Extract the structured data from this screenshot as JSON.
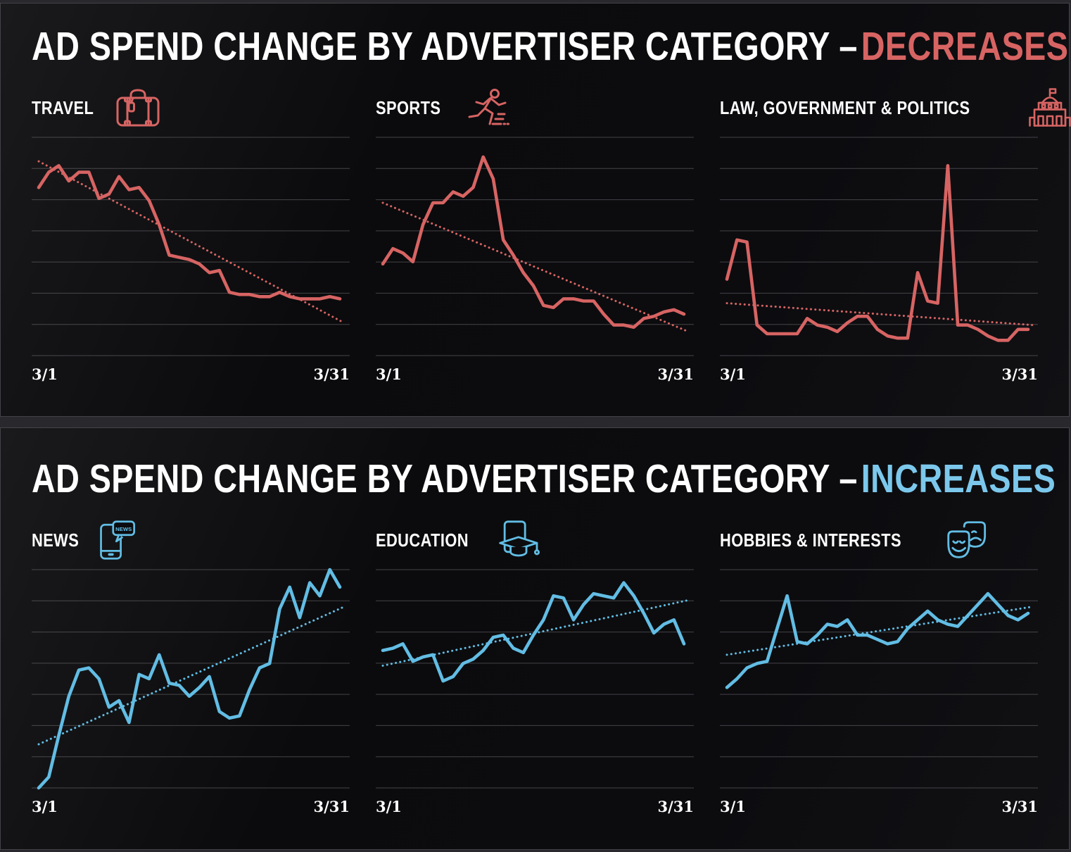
{
  "panels": [
    {
      "title": "AD SPEND CHANGE BY ADVERTISER CATEGORY –",
      "accent": "DECREASES",
      "accent_color": "#d76463"
    },
    {
      "title": "AD SPEND CHANGE BY ADVERTISER CATEGORY –",
      "accent": "INCREASES",
      "accent_color": "#7cc8ec"
    }
  ],
  "chart_data": [
    {
      "type": "line",
      "panel": 0,
      "label": "TRAVEL",
      "icon": "suitcase-icon",
      "color": "#d76463",
      "trend_style": "dotted",
      "x_start": "3/1",
      "x_end": "3/31",
      "x_range_days": 31,
      "ylim": [
        0,
        100
      ],
      "gridlines": 8,
      "legend": "none",
      "values": [
        77,
        84,
        87,
        80,
        84,
        84,
        72,
        74,
        82,
        76,
        77,
        71,
        60,
        46,
        45,
        44,
        42,
        38,
        39,
        29,
        28,
        28,
        27,
        27,
        29,
        27,
        26,
        26,
        26,
        27,
        26
      ],
      "trend": {
        "start": 89,
        "end": 15
      }
    },
    {
      "type": "line",
      "panel": 0,
      "label": "SPORTS",
      "icon": "runner-icon",
      "color": "#d76463",
      "trend_style": "dotted",
      "x_start": "3/1",
      "x_end": "3/31",
      "x_range_days": 31,
      "ylim": [
        0,
        100
      ],
      "gridlines": 8,
      "legend": "none",
      "values": [
        42,
        49,
        47,
        43,
        60,
        70,
        70,
        75,
        73,
        77,
        91,
        81,
        53,
        46,
        38,
        32,
        23,
        22,
        26,
        26,
        25,
        25,
        19,
        14,
        14,
        13,
        17,
        18,
        20,
        21,
        19
      ],
      "trend": {
        "start": 70,
        "end": 11
      }
    },
    {
      "type": "line",
      "panel": 0,
      "label": "LAW, GOVERNMENT & POLITICS",
      "icon": "capitol-icon",
      "color": "#d76463",
      "trend_style": "dotted",
      "x_start": "3/1",
      "x_end": "3/31",
      "x_range_days": 31,
      "ylim": [
        0,
        100
      ],
      "gridlines": 8,
      "legend": "none",
      "values": [
        35,
        53,
        52,
        14,
        10,
        10,
        10,
        10,
        17,
        14,
        13,
        11,
        15,
        18,
        18,
        12,
        9,
        8,
        8,
        38,
        25,
        24,
        87,
        14,
        14,
        12,
        9,
        7,
        7,
        12,
        12
      ],
      "trend": {
        "start": 24,
        "end": 14
      }
    },
    {
      "type": "line",
      "panel": 1,
      "label": "NEWS",
      "icon": "news-phone-icon",
      "color": "#62bde4",
      "trend_style": "dotted",
      "x_start": "3/1",
      "x_end": "3/31",
      "x_range_days": 31,
      "ylim": [
        0,
        100
      ],
      "gridlines": 8,
      "legend": "none",
      "values": [
        0,
        5,
        24,
        42,
        54,
        55,
        50,
        37,
        40,
        30,
        52,
        50,
        61,
        48,
        47,
        42,
        46,
        51,
        35,
        32,
        33,
        45,
        55,
        57,
        82,
        92,
        78,
        94,
        88,
        100,
        92
      ],
      "trend": {
        "start": 20,
        "end": 83
      }
    },
    {
      "type": "line",
      "panel": 1,
      "label": "EDUCATION",
      "icon": "graduation-cap-icon",
      "color": "#62bde4",
      "trend_style": "dotted",
      "x_start": "3/1",
      "x_end": "3/31",
      "x_range_days": 31,
      "ylim": [
        0,
        100
      ],
      "gridlines": 8,
      "legend": "none",
      "values": [
        63,
        64,
        66,
        58,
        60,
        61,
        49,
        51,
        57,
        59,
        63,
        69,
        70,
        64,
        62,
        70,
        77,
        88,
        87,
        77,
        84,
        89,
        88,
        87,
        94,
        88,
        80,
        71,
        75,
        77,
        66
      ],
      "trend": {
        "start": 56,
        "end": 86
      }
    },
    {
      "type": "line",
      "panel": 1,
      "label": "HOBBIES & INTERESTS",
      "icon": "theater-masks-icon",
      "color": "#62bde4",
      "trend_style": "dotted",
      "x_start": "3/1",
      "x_end": "3/31",
      "x_range_days": 31,
      "ylim": [
        0,
        100
      ],
      "gridlines": 8,
      "legend": "none",
      "values": [
        46,
        50,
        55,
        57,
        58,
        73,
        88,
        67,
        66,
        70,
        75,
        74,
        77,
        70,
        70,
        68,
        66,
        67,
        73,
        77,
        81,
        77,
        75,
        74,
        79,
        84,
        89,
        84,
        79,
        77,
        80
      ],
      "trend": {
        "start": 61,
        "end": 83
      }
    }
  ],
  "news_bubble_text": "NEWS"
}
